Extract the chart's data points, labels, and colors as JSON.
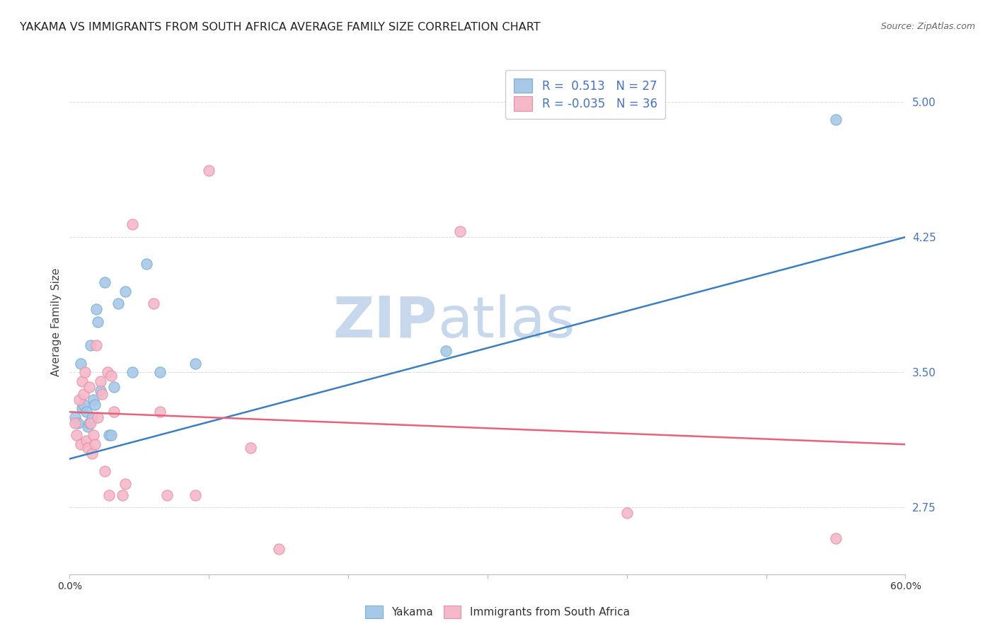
{
  "title": "YAKAMA VS IMMIGRANTS FROM SOUTH AFRICA AVERAGE FAMILY SIZE CORRELATION CHART",
  "source": "Source: ZipAtlas.com",
  "ylabel": "Average Family Size",
  "xlim": [
    0.0,
    0.6
  ],
  "ylim": [
    2.38,
    5.18
  ],
  "yticks": [
    2.75,
    3.5,
    4.25,
    5.0
  ],
  "ytick_labels": [
    "2.75",
    "3.50",
    "4.25",
    "5.00"
  ],
  "xticks": [
    0.0,
    0.1,
    0.2,
    0.3,
    0.4,
    0.5,
    0.6
  ],
  "xtick_labels": [
    "0.0%",
    "",
    "",
    "",
    "",
    "",
    "60.0%"
  ],
  "blue_color": "#a8c8e8",
  "pink_color": "#f4b8c8",
  "blue_edge_color": "#7aafd4",
  "pink_edge_color": "#e890a8",
  "blue_line_color": "#3a7fc1",
  "pink_line_color": "#e8607a",
  "legend_R_blue": "0.513",
  "legend_N_blue": "27",
  "legend_R_pink": "-0.035",
  "legend_N_pink": "36",
  "blue_scatter_x": [
    0.004,
    0.006,
    0.008,
    0.009,
    0.01,
    0.012,
    0.013,
    0.014,
    0.015,
    0.016,
    0.017,
    0.018,
    0.019,
    0.02,
    0.022,
    0.025,
    0.028,
    0.03,
    0.032,
    0.035,
    0.04,
    0.045,
    0.055,
    0.065,
    0.09,
    0.27,
    0.55
  ],
  "blue_scatter_y": [
    3.25,
    3.22,
    3.55,
    3.3,
    3.32,
    3.28,
    3.2,
    3.22,
    3.65,
    3.25,
    3.35,
    3.32,
    3.85,
    3.78,
    3.4,
    4.0,
    3.15,
    3.15,
    3.42,
    3.88,
    3.95,
    3.5,
    4.1,
    3.5,
    3.55,
    3.62,
    4.9
  ],
  "pink_scatter_x": [
    0.004,
    0.005,
    0.007,
    0.008,
    0.009,
    0.01,
    0.011,
    0.012,
    0.013,
    0.014,
    0.015,
    0.016,
    0.017,
    0.018,
    0.019,
    0.02,
    0.022,
    0.023,
    0.025,
    0.027,
    0.028,
    0.03,
    0.032,
    0.038,
    0.04,
    0.045,
    0.06,
    0.065,
    0.07,
    0.09,
    0.1,
    0.13,
    0.15,
    0.28,
    0.4,
    0.55
  ],
  "pink_scatter_y": [
    3.22,
    3.15,
    3.35,
    3.1,
    3.45,
    3.38,
    3.5,
    3.12,
    3.08,
    3.42,
    3.22,
    3.05,
    3.15,
    3.1,
    3.65,
    3.25,
    3.45,
    3.38,
    2.95,
    3.5,
    2.82,
    3.48,
    3.28,
    2.82,
    2.88,
    4.32,
    3.88,
    3.28,
    2.82,
    2.82,
    4.62,
    3.08,
    2.52,
    4.28,
    2.72,
    2.58
  ],
  "blue_line_x": [
    0.0,
    0.6
  ],
  "blue_line_y": [
    3.02,
    4.25
  ],
  "pink_line_x": [
    0.0,
    0.6
  ],
  "pink_line_y": [
    3.28,
    3.1
  ],
  "watermark_zip": "ZIP",
  "watermark_atlas": "atlas",
  "watermark_color": "#c8d8ec",
  "background_color": "#ffffff",
  "title_fontsize": 11.5,
  "axis_label_fontsize": 11,
  "tick_label_fontsize": 10,
  "ytick_color": "#4472c4",
  "grid_color": "#d3dce8",
  "legend_value_color": "#4472c4",
  "legend_fontsize": 12
}
